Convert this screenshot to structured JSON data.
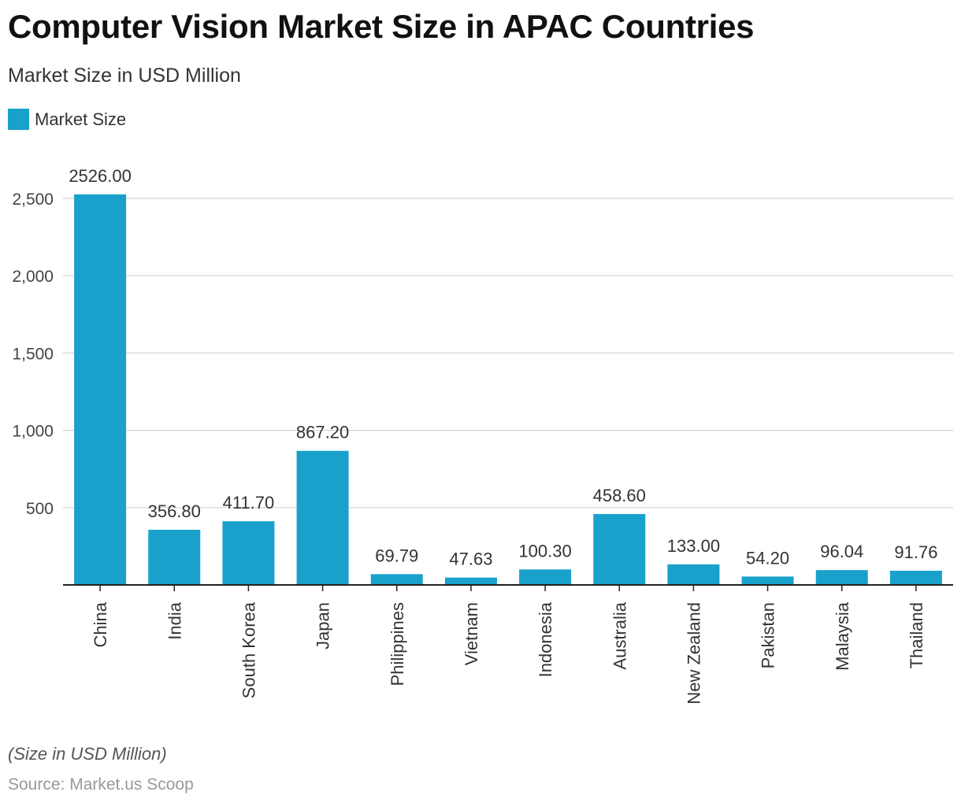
{
  "header": {
    "title": "Computer Vision Market Size in APAC Countries",
    "subtitle": "Market Size in USD Million"
  },
  "legend": {
    "label": "Market Size",
    "color": "#19a1cc"
  },
  "footer": {
    "note": "(Size in USD Million)",
    "source": "Source: Market.us Scoop"
  },
  "chart_data": {
    "type": "bar",
    "title": "Computer Vision Market Size in APAC Countries",
    "subtitle": "Market Size in USD Million",
    "categories": [
      "China",
      "India",
      "South Korea",
      "Japan",
      "Philippines",
      "Vietnam",
      "Indonesia",
      "Australia",
      "New Zealand",
      "Pakistan",
      "Malaysia",
      "Thailand"
    ],
    "series": [
      {
        "name": "Market Size",
        "color": "#19a1cc",
        "values": [
          2526.0,
          356.8,
          411.7,
          867.2,
          69.79,
          47.63,
          100.3,
          458.6,
          133.0,
          54.2,
          96.04,
          91.76
        ],
        "labels": [
          "2526.00",
          "356.80",
          "411.70",
          "867.20",
          "69.79",
          "47.63",
          "100.30",
          "458.60",
          "133.00",
          "54.20",
          "96.04",
          "91.76"
        ]
      }
    ],
    "yticks": [
      500,
      1000,
      1500,
      2000,
      2500
    ],
    "ytick_labels": [
      "500",
      "1,000",
      "1,500",
      "2,000",
      "2,500"
    ],
    "ylim": [
      0,
      2500
    ],
    "grid": true,
    "legend_position": "top-left"
  }
}
